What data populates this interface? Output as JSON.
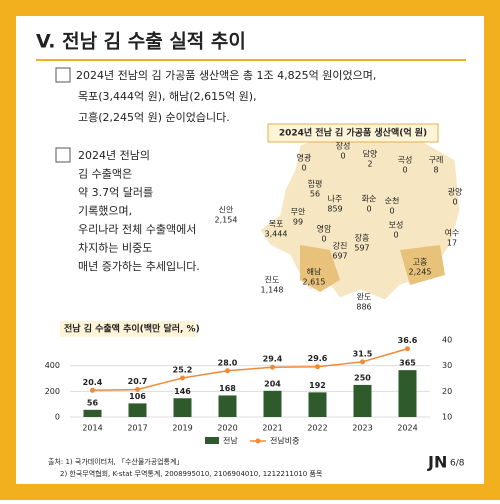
{
  "header": {
    "title": "V. 전남 김 수출 실적 추이"
  },
  "paragraph1": {
    "lines": [
      "2024년 전남의 김 가공품 생산액은 총 1조 4,825억 원이었으며,",
      "목포(3,444억 원), 해남(2,615억 원),",
      "고흥(2,245억 원) 순이었습니다."
    ]
  },
  "paragraph2": {
    "lines": [
      "2024년 전남의",
      "김 수출액은",
      "약  3.7억 달러를",
      "기록했으며,",
      "우리나라 전체 수출액에서",
      "차지하는 비중도",
      "매년 증가하는 추세입니다."
    ]
  },
  "map": {
    "title": "2024년 전남 김 가공품 생산액(억 원)",
    "regions": [
      {
        "name": "영광",
        "value": "0"
      },
      {
        "name": "장성",
        "value": "0"
      },
      {
        "name": "담양",
        "value": "2"
      },
      {
        "name": "곡성",
        "value": "0"
      },
      {
        "name": "구례",
        "value": "8"
      },
      {
        "name": "함평",
        "value": "56"
      },
      {
        "name": "나주",
        "value": "859"
      },
      {
        "name": "화순",
        "value": "0"
      },
      {
        "name": "광양",
        "value": "0"
      },
      {
        "name": "신안",
        "value": "2,154"
      },
      {
        "name": "무안",
        "value": "99"
      },
      {
        "name": "목포",
        "value": "3,444"
      },
      {
        "name": "순천",
        "value": "0"
      },
      {
        "name": "영암",
        "value": "0"
      },
      {
        "name": "보성",
        "value": "0"
      },
      {
        "name": "여수",
        "value": "17"
      },
      {
        "name": "장흥",
        "value": "597"
      },
      {
        "name": "강진",
        "value": "697"
      },
      {
        "name": "해남",
        "value": "2,615"
      },
      {
        "name": "고흥",
        "value": "2,245"
      },
      {
        "name": "진도",
        "value": "1,148"
      },
      {
        "name": "완도",
        "value": "886"
      }
    ]
  },
  "chart_data": {
    "type": "bar_line",
    "title": "전남 김 수출액 추이(백만 달러, %)",
    "categories": [
      "2014",
      "2017",
      "2019",
      "2020",
      "2021",
      "2022",
      "2023",
      "2024"
    ],
    "series": [
      {
        "name": "전남",
        "color": "#2f5a2c",
        "values": [
          56,
          106,
          146,
          168,
          204,
          192,
          250,
          365
        ]
      },
      {
        "name": "전남비중",
        "color": "#ef8a3a",
        "axis": "y2",
        "values": [
          20.4,
          20.7,
          25.2,
          28.0,
          29.4,
          29.6,
          31.5,
          36.6
        ],
        "value_labels": [
          "20.4",
          "20.7",
          "25.2",
          "28.0",
          "29.4",
          "29.6",
          "31.5",
          "36.6"
        ]
      }
    ],
    "ylim": [
      0,
      600
    ],
    "yticks": [
      0,
      200,
      400
    ],
    "y2lim": [
      10,
      40
    ],
    "y2ticks": [
      10,
      20,
      30,
      40
    ],
    "grid": true
  },
  "footer": {
    "sources": [
      "출처: 1) 국가데이터처, 「수산물가공업통계」",
      "2) 한국무역협회, K-stat 무역통계, 2008995010, 2106904010, 1212211010 품목"
    ],
    "logo": "JN",
    "page": "6/8"
  }
}
